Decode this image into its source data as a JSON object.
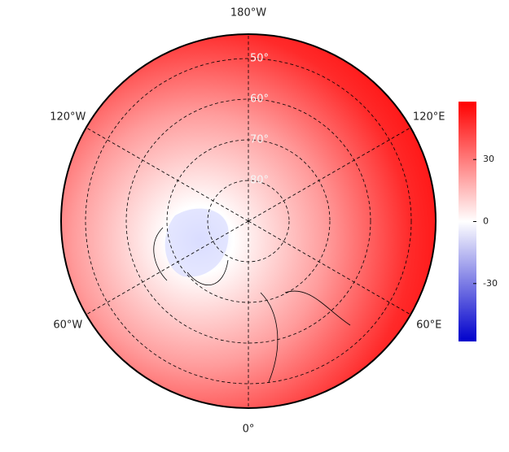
{
  "map": {
    "projection": "north-polar-stereographic",
    "longitude_labels": [
      {
        "value": 180,
        "label": "180°W"
      },
      {
        "value": -120,
        "label": "120°W"
      },
      {
        "value": 120,
        "label": "120°E"
      },
      {
        "value": -60,
        "label": "60°W"
      },
      {
        "value": 60,
        "label": "60°E"
      },
      {
        "value": 0,
        "label": "0°"
      }
    ],
    "latitude_labels": [
      {
        "value": 50,
        "label": "50°"
      },
      {
        "value": 60,
        "label": "60°"
      },
      {
        "value": 70,
        "label": "70°"
      },
      {
        "value": 80,
        "label": "80°"
      }
    ],
    "colorbar": {
      "lim": [
        -58,
        58
      ],
      "ticks": [
        30,
        0,
        -30
      ],
      "colors": [
        "#0000cc",
        "#ffffff",
        "#ff0000"
      ]
    }
  }
}
